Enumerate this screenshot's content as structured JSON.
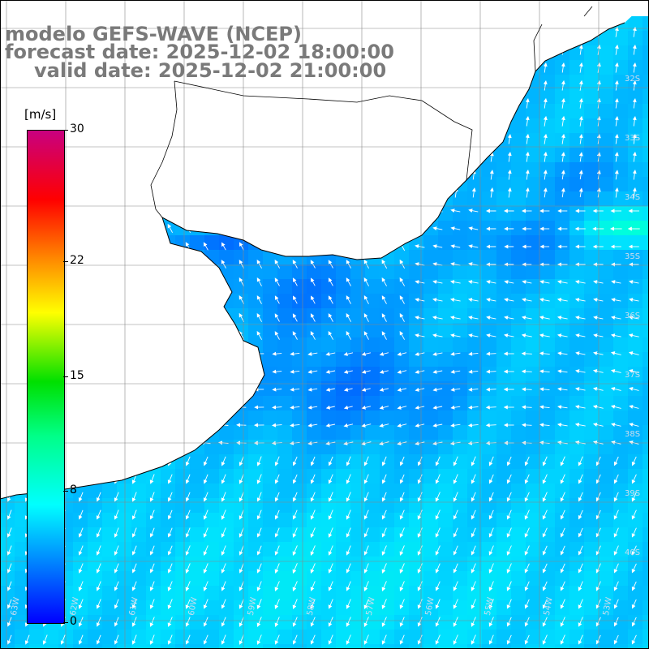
{
  "titles": {
    "model": "modelo GEFS-WAVE (NCEP)",
    "forecast": "forecast date: 2025-12-02 18:00:00",
    "valid": "valid date: 2025-12-02 21:00:00"
  },
  "colorbar": {
    "unit": "[m/s]",
    "ticks": [
      {
        "value": 0,
        "label": "0"
      },
      {
        "value": 8,
        "label": "8"
      },
      {
        "value": 15,
        "label": "15"
      },
      {
        "value": 22,
        "label": "22"
      },
      {
        "value": 30,
        "label": "30"
      }
    ],
    "colors": [
      "#0000ff",
      "#0096ff",
      "#00ffff",
      "#00ff88",
      "#00e000",
      "#ffff00",
      "#ff8800",
      "#ff0000",
      "#c80080"
    ]
  },
  "chart_data": {
    "type": "heatmap",
    "variable": "wind speed with direction vectors",
    "range": [
      0,
      30
    ],
    "lat_labels": [
      "32S",
      "33S",
      "34S",
      "35S",
      "36S",
      "37S",
      "38S",
      "39S",
      "40S"
    ],
    "lon_labels": [
      "63W",
      "62W",
      "61W",
      "60W",
      "59W",
      "58W",
      "57W",
      "56W",
      "55W",
      "54W",
      "53W"
    ]
  }
}
